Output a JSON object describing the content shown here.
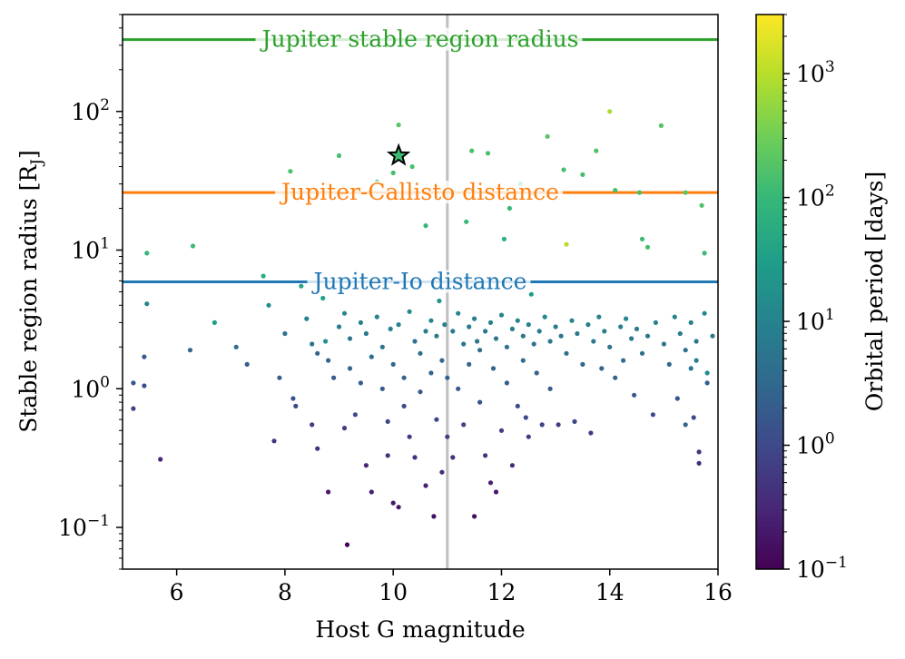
{
  "chart_data": {
    "type": "scatter",
    "xlabel": "Host G magnitude",
    "ylabel": "Stable region radius [R",
    "ylabel_sub": "J",
    "ylabel_close": "]",
    "x_range": [
      5,
      16
    ],
    "y_range": [
      0.05,
      500
    ],
    "y_scale": "log",
    "x_ticks": [
      6,
      8,
      10,
      12,
      14,
      16
    ],
    "x_tick_labels": [
      "6",
      "8",
      "10",
      "12",
      "14",
      "16"
    ],
    "y_ticks": [
      {
        "value": 0.1,
        "base": "10",
        "exp": "−1"
      },
      {
        "value": 1,
        "base": "10",
        "exp": "0"
      },
      {
        "value": 10,
        "base": "10",
        "exp": "1"
      },
      {
        "value": 100,
        "base": "10",
        "exp": "2"
      }
    ],
    "vertical_line": {
      "x": 11,
      "color": "#bfbfbf"
    },
    "reference_lines": [
      {
        "y": 330,
        "label": "Jupiter stable region radius",
        "color": "#2ca02c"
      },
      {
        "y": 26,
        "label": "Jupiter-Callisto distance",
        "color": "#ff7f0e"
      },
      {
        "y": 5.9,
        "label": "Jupiter-Io distance",
        "color": "#1f77b4"
      }
    ],
    "highlight": {
      "x": 10.1,
      "y": 48,
      "period": 120,
      "marker": "star"
    },
    "colorbar": {
      "label": "Orbital period [days]",
      "scale": "log",
      "range": [
        0.1,
        3000
      ],
      "colormap": "viridis",
      "ticks": [
        {
          "value": 0.1,
          "base": "10",
          "exp": "−1"
        },
        {
          "value": 1,
          "base": "10",
          "exp": "0"
        },
        {
          "value": 10,
          "base": "10",
          "exp": "1"
        },
        {
          "value": 100,
          "base": "10",
          "exp": "2"
        },
        {
          "value": 1000,
          "base": "10",
          "exp": "3"
        }
      ]
    },
    "points": [
      [
        5.2,
        1.1,
        1.5
      ],
      [
        5.2,
        0.72,
        0.8
      ],
      [
        5.4,
        1.7,
        2
      ],
      [
        5.4,
        1.05,
        1.2
      ],
      [
        5.45,
        9.5,
        90
      ],
      [
        5.45,
        4.1,
        10
      ],
      [
        5.7,
        0.31,
        0.3
      ],
      [
        6.25,
        1.9,
        3
      ],
      [
        6.3,
        10.7,
        110
      ],
      [
        6.7,
        3.0,
        30
      ],
      [
        7.1,
        2.0,
        4
      ],
      [
        7.3,
        1.5,
        2
      ],
      [
        7.6,
        6.5,
        60
      ],
      [
        7.7,
        4.0,
        15
      ],
      [
        7.8,
        0.42,
        0.5
      ],
      [
        7.9,
        1.2,
        2
      ],
      [
        8.0,
        2.5,
        5
      ],
      [
        8.1,
        37,
        150
      ],
      [
        8.15,
        0.85,
        1.5
      ],
      [
        8.2,
        0.75,
        1
      ],
      [
        8.3,
        5.5,
        40
      ],
      [
        8.4,
        3.2,
        10
      ],
      [
        8.5,
        2.1,
        5
      ],
      [
        8.5,
        0.55,
        0.7
      ],
      [
        8.6,
        0.37,
        0.4
      ],
      [
        8.6,
        1.8,
        3
      ],
      [
        8.7,
        4.5,
        35
      ],
      [
        8.75,
        2.2,
        20
      ],
      [
        8.8,
        1.6,
        3
      ],
      [
        8.8,
        0.18,
        0.2
      ],
      [
        8.9,
        1.2,
        2
      ],
      [
        9.0,
        2.8,
        8
      ],
      [
        9.0,
        48,
        140
      ],
      [
        9.1,
        0.52,
        0.7
      ],
      [
        9.1,
        3.5,
        12
      ],
      [
        9.15,
        0.075,
        0.1
      ],
      [
        9.2,
        1.4,
        3
      ],
      [
        9.2,
        2.3,
        6
      ],
      [
        9.3,
        0.65,
        1
      ],
      [
        9.4,
        3.0,
        9
      ],
      [
        9.4,
        1.1,
        2
      ],
      [
        9.5,
        0.28,
        0.3
      ],
      [
        9.5,
        2.5,
        7
      ],
      [
        9.6,
        1.7,
        4
      ],
      [
        9.6,
        0.18,
        0.25
      ],
      [
        9.7,
        3.3,
        10
      ],
      [
        9.7,
        31,
        120
      ],
      [
        9.8,
        2.0,
        5
      ],
      [
        9.8,
        1.0,
        2
      ],
      [
        9.9,
        0.58,
        0.9
      ],
      [
        9.9,
        0.33,
        0.4
      ],
      [
        9.95,
        2.7,
        8
      ],
      [
        10.0,
        36,
        130
      ],
      [
        10.0,
        1.5,
        3
      ],
      [
        10.0,
        0.15,
        0.2
      ],
      [
        10.1,
        80,
        200
      ],
      [
        10.1,
        2.9,
        9
      ],
      [
        10.1,
        0.14,
        0.18
      ],
      [
        10.2,
        1.2,
        2.5
      ],
      [
        10.2,
        0.75,
        1.2
      ],
      [
        10.3,
        3.6,
        12
      ],
      [
        10.3,
        0.45,
        0.6
      ],
      [
        10.35,
        40,
        150
      ],
      [
        10.4,
        2.2,
        5
      ],
      [
        10.4,
        0.32,
        0.4
      ],
      [
        10.5,
        1.8,
        4
      ],
      [
        10.5,
        0.95,
        1.8
      ],
      [
        10.6,
        2.6,
        8
      ],
      [
        10.6,
        15,
        90
      ],
      [
        10.6,
        0.2,
        0.25
      ],
      [
        10.7,
        3.1,
        10
      ],
      [
        10.7,
        1.3,
        3
      ],
      [
        10.75,
        0.12,
        0.15
      ],
      [
        10.8,
        2.4,
        6
      ],
      [
        10.8,
        0.6,
        0.9
      ],
      [
        10.85,
        4.3,
        20
      ],
      [
        10.9,
        1.6,
        3
      ],
      [
        10.9,
        0.25,
        0.35
      ],
      [
        10.95,
        2.9,
        9
      ],
      [
        11.0,
        0.45,
        0.6
      ],
      [
        11.0,
        1.2,
        2.5
      ],
      [
        11.1,
        2.6,
        7
      ],
      [
        11.1,
        0.32,
        0.4
      ],
      [
        11.2,
        3.5,
        12
      ],
      [
        11.2,
        1.0,
        2
      ],
      [
        11.3,
        2.1,
        5
      ],
      [
        11.3,
        0.55,
        0.8
      ],
      [
        11.35,
        16,
        100
      ],
      [
        11.4,
        2.8,
        8
      ],
      [
        11.4,
        1.5,
        3
      ],
      [
        11.45,
        52,
        150
      ],
      [
        11.5,
        3.2,
        10
      ],
      [
        11.5,
        0.12,
        0.15
      ],
      [
        11.55,
        2.2,
        6
      ],
      [
        11.6,
        0.8,
        1.5
      ],
      [
        11.6,
        1.9,
        4
      ],
      [
        11.7,
        2.6,
        7
      ],
      [
        11.7,
        0.33,
        0.45
      ],
      [
        11.75,
        50,
        150
      ],
      [
        11.8,
        3.0,
        9
      ],
      [
        11.8,
        0.21,
        0.25
      ],
      [
        11.85,
        1.4,
        3
      ],
      [
        11.9,
        2.3,
        6
      ],
      [
        11.9,
        0.18,
        0.2
      ],
      [
        12.0,
        3.4,
        11
      ],
      [
        12.0,
        0.5,
        0.7
      ],
      [
        12.05,
        12,
        80
      ],
      [
        12.1,
        2.0,
        5
      ],
      [
        12.1,
        1.1,
        2.2
      ],
      [
        12.15,
        20,
        100
      ],
      [
        12.2,
        2.7,
        8
      ],
      [
        12.2,
        0.28,
        0.35
      ],
      [
        12.3,
        3.1,
        10
      ],
      [
        12.3,
        0.75,
        1.2
      ],
      [
        12.35,
        30,
        130
      ],
      [
        12.4,
        2.4,
        6
      ],
      [
        12.4,
        1.6,
        3.5
      ],
      [
        12.45,
        0.62,
        1
      ],
      [
        12.5,
        2.9,
        9
      ],
      [
        12.5,
        0.45,
        0.6
      ],
      [
        12.55,
        4.8,
        25
      ],
      [
        12.6,
        2.1,
        5
      ],
      [
        12.65,
        1.3,
        2.5
      ],
      [
        12.7,
        2.6,
        7
      ],
      [
        12.75,
        0.55,
        0.8
      ],
      [
        12.8,
        3.3,
        11
      ],
      [
        12.85,
        66,
        180
      ],
      [
        12.9,
        2.2,
        6
      ],
      [
        12.9,
        1.0,
        2
      ],
      [
        13.0,
        2.8,
        8
      ],
      [
        13.05,
        0.55,
        0.7
      ],
      [
        13.1,
        2.4,
        6
      ],
      [
        13.15,
        38,
        140
      ],
      [
        13.2,
        1.8,
        4
      ],
      [
        13.2,
        11,
        1000
      ],
      [
        13.3,
        3.1,
        10
      ],
      [
        13.35,
        0.58,
        0.9
      ],
      [
        13.4,
        2.5,
        7
      ],
      [
        13.5,
        35,
        140
      ],
      [
        13.5,
        1.5,
        3
      ],
      [
        13.6,
        2.9,
        9
      ],
      [
        13.65,
        0.48,
        0.6
      ],
      [
        13.7,
        2.2,
        6
      ],
      [
        13.75,
        52,
        160
      ],
      [
        13.8,
        3.3,
        11
      ],
      [
        13.85,
        1.4,
        3
      ],
      [
        13.9,
        2.6,
        8
      ],
      [
        14.0,
        100,
        800
      ],
      [
        14.0,
        2.0,
        5
      ],
      [
        14.1,
        27,
        130
      ],
      [
        14.1,
        1.2,
        2.5
      ],
      [
        14.2,
        2.8,
        8
      ],
      [
        14.25,
        1.6,
        3.5
      ],
      [
        14.3,
        3.2,
        11
      ],
      [
        14.4,
        2.3,
        6
      ],
      [
        14.45,
        0.9,
        1.8
      ],
      [
        14.5,
        2.7,
        8
      ],
      [
        14.55,
        26,
        130
      ],
      [
        14.6,
        12,
        120
      ],
      [
        14.6,
        1.8,
        4
      ],
      [
        14.7,
        10.5,
        130
      ],
      [
        14.7,
        2.4,
        6
      ],
      [
        14.8,
        0.65,
        1
      ],
      [
        14.85,
        3.0,
        9
      ],
      [
        14.95,
        79,
        180
      ],
      [
        15.0,
        2.1,
        5
      ],
      [
        15.1,
        1.5,
        3
      ],
      [
        15.2,
        3.3,
        11
      ],
      [
        15.25,
        0.85,
        1.6
      ],
      [
        15.3,
        2.5,
        7
      ],
      [
        15.4,
        26,
        200
      ],
      [
        15.4,
        1.9,
        4
      ],
      [
        15.5,
        3.0,
        9
      ],
      [
        15.55,
        0.62,
        1
      ],
      [
        15.6,
        2.2,
        6
      ],
      [
        15.65,
        0.35,
        0.5
      ],
      [
        15.65,
        0.29,
        0.4
      ],
      [
        15.7,
        21,
        160
      ],
      [
        15.75,
        3.5,
        12
      ],
      [
        15.8,
        1.1,
        2.2
      ],
      [
        15.9,
        2.4,
        6
      ],
      [
        15.75,
        9.5,
        110
      ],
      [
        15.5,
        1.4,
        5
      ],
      [
        15.4,
        0.55,
        3
      ],
      [
        15.6,
        1.6,
        8
      ],
      [
        15.8,
        1.3,
        15
      ]
    ]
  }
}
